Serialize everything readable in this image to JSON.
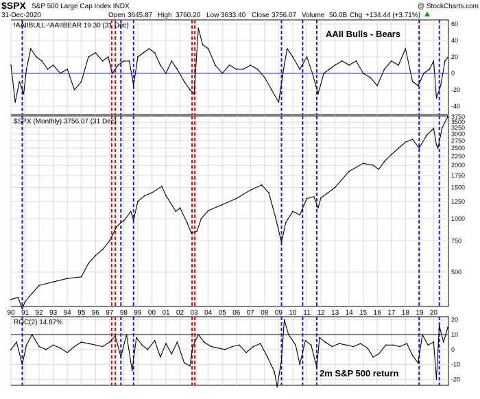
{
  "header": {
    "symbol": "$SPX",
    "name": "S&P 500 Large Cap Index INDX",
    "date": "31-Dec-2020",
    "open_label": "Open",
    "open": "3645.87",
    "high_label": "High",
    "high": "3760.20",
    "low_label": "Low",
    "low": "3633.40",
    "close_label": "Close",
    "close": "3756.07",
    "volume_label": "Volume",
    "volume": "50.0B",
    "chg_label": "Chg",
    "chg": "+134.44 (+3.71%)",
    "chg_icon": "triangle-up-icon",
    "watermark": "@ StockCharts.com"
  },
  "colors": {
    "price_line": "#000000",
    "blue_marker": "#1a1ae6",
    "red_marker": "#e01010",
    "zero_line": "#1a1ae6",
    "grid": "#d8d8d8",
    "frame": "#000000"
  },
  "chart_data": [
    {
      "type": "line",
      "legend": "!AAIIBULL-!AAIIBEAR 19.30 (31 Dec)",
      "annotation": "AAII Bulls - Bears",
      "ylim": [
        -50,
        65
      ],
      "yticks": [
        -40,
        -20,
        0,
        20,
        40,
        60
      ],
      "reference_line": 0,
      "grid": true,
      "series": [
        {
          "x": [
            1990.0,
            1990.3,
            1990.6,
            1990.9,
            1991.1,
            1991.4,
            1991.8,
            1992.2,
            1992.6,
            1993.0,
            1993.5,
            1994.0,
            1994.5,
            1995.0,
            1995.5,
            1996.0,
            1996.5,
            1996.9,
            1997.2,
            1997.6,
            1998.0,
            1998.4,
            1998.7,
            1999.0,
            1999.4,
            1999.8,
            2000.2,
            2000.6,
            2001.0,
            2001.4,
            2001.8,
            2002.3,
            2002.7,
            2003.0,
            2003.3,
            2003.6,
            2004.0,
            2004.5,
            2005.0,
            2005.5,
            2006.0,
            2006.5,
            2007.0,
            2007.5,
            2008.0,
            2008.5,
            2009.0,
            2009.3,
            2009.6,
            2010.0,
            2010.5,
            2011.0,
            2011.4,
            2011.8,
            2012.2,
            2012.6,
            2013.0,
            2013.5,
            2014.0,
            2014.5,
            2015.0,
            2015.5,
            2016.0,
            2016.5,
            2017.0,
            2017.5,
            2018.0,
            2018.5,
            2018.9,
            2019.3,
            2019.7,
            2020.0,
            2020.2,
            2020.5,
            2020.8,
            2021.0
          ],
          "values": [
            10,
            -35,
            -10,
            -25,
            5,
            30,
            20,
            15,
            5,
            10,
            0,
            5,
            -20,
            -10,
            20,
            25,
            15,
            20,
            0,
            10,
            15,
            15,
            -15,
            20,
            25,
            30,
            25,
            10,
            0,
            15,
            5,
            -10,
            -20,
            -25,
            55,
            35,
            30,
            10,
            0,
            10,
            5,
            5,
            10,
            5,
            -5,
            -20,
            -35,
            0,
            30,
            20,
            5,
            20,
            0,
            -25,
            0,
            5,
            10,
            15,
            10,
            15,
            0,
            -5,
            -15,
            5,
            15,
            10,
            30,
            -10,
            -15,
            0,
            5,
            15,
            -30,
            -15,
            15,
            19.3
          ]
        }
      ]
    },
    {
      "type": "line",
      "legend": "$SPX (Monthly) 3756.07 (31 Dec)",
      "scale": "log",
      "ylim": [
        320,
        3800
      ],
      "yticks": [
        500,
        750,
        1000,
        1250,
        1500,
        1750,
        2000,
        2250,
        2500,
        2750,
        3000,
        3250,
        3500,
        3750
      ],
      "xlabel": "",
      "xticks": [
        "90",
        "91",
        "92",
        "93",
        "94",
        "95",
        "96",
        "97",
        "98",
        "99",
        "00",
        "01",
        "02",
        "03",
        "04",
        "05",
        "06",
        "07",
        "08",
        "09",
        "10",
        "11",
        "12",
        "13",
        "14",
        "15",
        "16",
        "17",
        "18",
        "19",
        "20"
      ],
      "grid": true,
      "series": [
        {
          "x": [
            1990.0,
            1990.5,
            1990.8,
            1991.0,
            1991.5,
            1992.0,
            1993.0,
            1994.0,
            1995.0,
            1995.5,
            1996.0,
            1996.5,
            1997.0,
            1997.5,
            1997.8,
            1998.0,
            1998.5,
            1998.7,
            1999.0,
            1999.5,
            2000.0,
            2000.7,
            2001.0,
            2001.7,
            2002.0,
            2002.5,
            2002.8,
            2003.2,
            2003.5,
            2004.0,
            2005.0,
            2006.0,
            2007.0,
            2007.8,
            2008.3,
            2008.8,
            2009.2,
            2009.5,
            2010.0,
            2010.5,
            2011.0,
            2011.5,
            2011.8,
            2012.0,
            2012.5,
            2013.0,
            2014.0,
            2015.0,
            2015.7,
            2016.1,
            2016.5,
            2017.0,
            2018.0,
            2018.5,
            2018.97,
            2019.5,
            2020.0,
            2020.2,
            2020.3,
            2020.6,
            2021.0
          ],
          "values": [
            350,
            360,
            310,
            340,
            380,
            420,
            440,
            460,
            470,
            560,
            620,
            670,
            750,
            900,
            950,
            970,
            1100,
            980,
            1250,
            1350,
            1400,
            1520,
            1350,
            1100,
            1150,
            950,
            830,
            850,
            1000,
            1110,
            1200,
            1300,
            1450,
            1550,
            1400,
            1000,
            735,
            950,
            1100,
            1050,
            1300,
            1330,
            1150,
            1310,
            1400,
            1500,
            1850,
            2050,
            2000,
            1900,
            2100,
            2300,
            2700,
            2800,
            2500,
            2950,
            3230,
            2600,
            2500,
            3250,
            3756
          ]
        }
      ]
    },
    {
      "type": "line",
      "legend": "ROC(2) 14.87%",
      "annotation": "2m S&P 500 return",
      "ylim": [
        -24,
        22
      ],
      "yticks": [
        -20,
        -10,
        0,
        10,
        20
      ],
      "reference_line": 10,
      "grid": true,
      "series": [
        {
          "x": [
            1990.0,
            1990.4,
            1990.8,
            1991.1,
            1991.5,
            1992.0,
            1992.5,
            1993.0,
            1993.5,
            1994.0,
            1994.5,
            1995.0,
            1995.5,
            1996.0,
            1996.5,
            1997.0,
            1997.4,
            1997.8,
            1998.2,
            1998.6,
            1998.9,
            1999.3,
            1999.7,
            2000.2,
            2000.6,
            2001.0,
            2001.4,
            2001.8,
            2002.3,
            2002.7,
            2002.9,
            2003.3,
            2003.7,
            2004.2,
            2004.7,
            2005.2,
            2005.7,
            2006.2,
            2006.7,
            2007.2,
            2007.7,
            2008.2,
            2008.7,
            2008.9,
            2009.2,
            2009.4,
            2009.7,
            2010.2,
            2010.5,
            2010.9,
            2011.3,
            2011.7,
            2011.9,
            2012.3,
            2012.8,
            2013.3,
            2013.8,
            2014.3,
            2014.8,
            2015.3,
            2015.7,
            2016.1,
            2016.6,
            2017.1,
            2017.6,
            2018.1,
            2018.5,
            2018.9,
            2019.2,
            2019.6,
            2020.0,
            2020.2,
            2020.4,
            2020.7,
            2021.0
          ],
          "values": [
            0,
            5,
            -10,
            3,
            10,
            2,
            0,
            3,
            1,
            -2,
            2,
            5,
            4,
            3,
            2,
            5,
            9,
            -5,
            10,
            -14,
            8,
            3,
            0,
            6,
            -5,
            4,
            -3,
            5,
            -9,
            -11,
            2,
            10,
            5,
            2,
            1,
            0,
            2,
            3,
            -2,
            2,
            4,
            -5,
            -15,
            -25,
            -7,
            20,
            10,
            3,
            -10,
            6,
            3,
            -12,
            8,
            5,
            2,
            4,
            3,
            2,
            4,
            1,
            -5,
            -3,
            3,
            3,
            2,
            4,
            -4,
            -9,
            10,
            3,
            5,
            -20,
            16,
            5,
            14.87
          ]
        }
      ]
    }
  ],
  "vertical_markers": {
    "blue_x": [
      1990.8,
      1997.8,
      1998.7,
      2009.2,
      2010.7,
      2011.7,
      2018.97,
      2020.4
    ],
    "red_x": [
      1997.15,
      1997.4,
      2002.85,
      2003.05
    ]
  }
}
